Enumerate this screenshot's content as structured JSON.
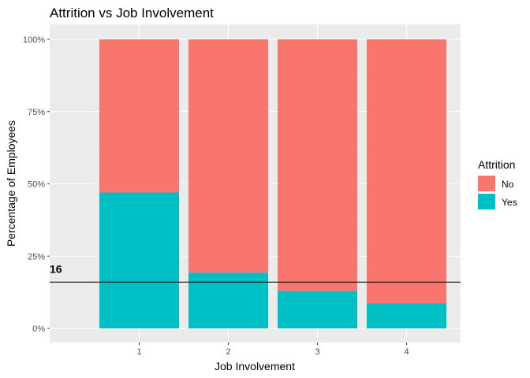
{
  "chart_data": {
    "type": "bar",
    "stacked": true,
    "title": "Attrition vs Job Involvement",
    "xlabel": "Job Involvement",
    "ylabel": "Percentage of Employees",
    "categories": [
      "1",
      "2",
      "3",
      "4"
    ],
    "series": [
      {
        "name": "No",
        "values": [
          53.0,
          80.7,
          87.0,
          91.3
        ],
        "color": "#F8766D"
      },
      {
        "name": "Yes",
        "values": [
          47.0,
          19.3,
          13.0,
          8.7
        ],
        "color": "#00BFC4"
      }
    ],
    "stack_order": [
      "Yes",
      "No"
    ],
    "ylim": [
      0,
      100
    ],
    "yticks": [
      0,
      25,
      50,
      75,
      100
    ],
    "ytick_labels": [
      "0%",
      "25%",
      "50%",
      "75%",
      "100%"
    ],
    "grid": true,
    "panel_background": "#EBEBEB",
    "legend": {
      "title": "Attrition",
      "entries": [
        "No",
        "Yes"
      ],
      "position": "right"
    },
    "reference_line": {
      "y": 16,
      "label": "16"
    }
  }
}
